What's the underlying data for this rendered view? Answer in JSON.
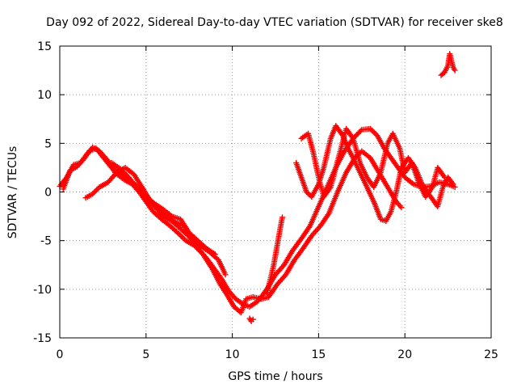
{
  "chart_data": {
    "type": "scatter",
    "title": "Day 092 of 2022, Sidereal Day-to-day VTEC variation (SDTVAR) for receiver ske8",
    "xlabel": "GPS time / hours",
    "ylabel": "SDTVAR / TECUs",
    "xlim": [
      0,
      25
    ],
    "ylim": [
      -15,
      15
    ],
    "xticks": [
      0,
      5,
      10,
      15,
      20,
      25
    ],
    "yticks": [
      -15,
      -10,
      -5,
      0,
      5,
      10,
      15
    ],
    "xtick_labels": [
      "0",
      "5",
      "10",
      "15",
      "20",
      "25"
    ],
    "ytick_labels": [
      "-15",
      "-10",
      "-5",
      "0",
      "5",
      "10",
      "15"
    ],
    "grid": true,
    "marker": "plus",
    "color": "#ff0000",
    "series": [
      {
        "name": "track-1",
        "points": [
          [
            0.0,
            0.6
          ],
          [
            0.4,
            1.5
          ],
          [
            0.8,
            2.8
          ],
          [
            1.2,
            3.0
          ],
          [
            1.7,
            4.2
          ],
          [
            2.1,
            4.5
          ],
          [
            2.5,
            3.6
          ],
          [
            3.0,
            2.5
          ],
          [
            3.5,
            2.0
          ],
          [
            4.0,
            1.2
          ],
          [
            4.5,
            0.6
          ],
          [
            5.0,
            -0.3
          ],
          [
            5.5,
            -1.5
          ],
          [
            6.0,
            -2.5
          ],
          [
            6.5,
            -3.0
          ],
          [
            7.0,
            -3.8
          ],
          [
            7.5,
            -4.6
          ],
          [
            8.0,
            -5.8
          ],
          [
            8.5,
            -6.8
          ],
          [
            9.0,
            -8.0
          ],
          [
            9.4,
            -9.0
          ],
          [
            9.8,
            -10.2
          ],
          [
            10.2,
            -11.0
          ],
          [
            10.6,
            -11.5
          ],
          [
            11.0,
            -11.8
          ],
          [
            11.5,
            -11.2
          ],
          [
            12.0,
            -10.0
          ],
          [
            12.5,
            -8.5
          ],
          [
            13.0,
            -7.5
          ],
          [
            13.5,
            -6.0
          ],
          [
            14.0,
            -4.8
          ],
          [
            14.5,
            -3.5
          ],
          [
            15.0,
            -1.5
          ],
          [
            15.5,
            0.5
          ],
          [
            16.0,
            2.5
          ],
          [
            16.5,
            4.2
          ],
          [
            17.0,
            5.5
          ],
          [
            17.5,
            6.4
          ],
          [
            18.0,
            6.5
          ],
          [
            18.4,
            5.8
          ],
          [
            18.8,
            4.5
          ],
          [
            19.2,
            3.5
          ],
          [
            19.6,
            2.5
          ],
          [
            20.0,
            1.5
          ],
          [
            20.5,
            0.8
          ],
          [
            21.0,
            0.5
          ],
          [
            21.5,
            0.6
          ],
          [
            22.0,
            1.0
          ],
          [
            22.5,
            0.8
          ],
          [
            22.9,
            0.5
          ]
        ]
      },
      {
        "name": "track-2",
        "points": [
          [
            0.2,
            0.3
          ],
          [
            0.6,
            2.2
          ],
          [
            1.0,
            2.6
          ],
          [
            1.4,
            3.4
          ],
          [
            1.9,
            4.6
          ],
          [
            2.3,
            4.2
          ],
          [
            2.8,
            3.2
          ],
          [
            3.2,
            2.0
          ],
          [
            3.7,
            1.3
          ],
          [
            4.2,
            0.8
          ],
          [
            4.6,
            0.0
          ],
          [
            5.0,
            -1.0
          ],
          [
            5.4,
            -2.0
          ],
          [
            5.9,
            -2.8
          ],
          [
            6.4,
            -3.5
          ],
          [
            6.9,
            -4.3
          ],
          [
            7.3,
            -5.0
          ],
          [
            7.8,
            -5.5
          ],
          [
            8.3,
            -6.4
          ],
          [
            8.8,
            -7.8
          ],
          [
            9.3,
            -9.5
          ],
          [
            9.7,
            -10.6
          ],
          [
            10.1,
            -11.8
          ],
          [
            10.5,
            -12.4
          ],
          [
            10.8,
            -11.0
          ],
          [
            11.2,
            -10.8
          ],
          [
            11.7,
            -11.0
          ],
          [
            12.1,
            -10.8
          ],
          [
            12.6,
            -9.5
          ],
          [
            13.1,
            -8.5
          ],
          [
            13.6,
            -7.0
          ],
          [
            14.1,
            -5.8
          ],
          [
            14.6,
            -4.5
          ],
          [
            15.1,
            -3.5
          ],
          [
            15.6,
            -2.2
          ],
          [
            16.1,
            0.0
          ],
          [
            16.6,
            2.0
          ],
          [
            17.1,
            3.5
          ],
          [
            17.5,
            4.2
          ],
          [
            18.0,
            3.5
          ],
          [
            18.5,
            2.0
          ],
          [
            19.0,
            0.5
          ],
          [
            19.5,
            -1.0
          ],
          [
            19.8,
            -1.6
          ]
        ]
      },
      {
        "name": "track-3",
        "points": [
          [
            1.5,
            -0.6
          ],
          [
            1.9,
            -0.2
          ],
          [
            2.3,
            0.5
          ],
          [
            2.8,
            1.0
          ],
          [
            3.3,
            2.0
          ],
          [
            3.8,
            2.5
          ],
          [
            4.3,
            1.8
          ],
          [
            4.8,
            0.4
          ],
          [
            5.2,
            -0.8
          ],
          [
            5.7,
            -1.8
          ],
          [
            6.2,
            -2.6
          ],
          [
            6.7,
            -3.1
          ],
          [
            7.2,
            -3.5
          ],
          [
            7.7,
            -4.8
          ],
          [
            8.2,
            -5.6
          ],
          [
            8.7,
            -6.2
          ],
          [
            9.2,
            -7.0
          ],
          [
            9.6,
            -8.5
          ]
        ]
      },
      {
        "name": "track-4",
        "points": [
          [
            3.0,
            3.0
          ],
          [
            3.5,
            2.4
          ],
          [
            4.0,
            1.5
          ],
          [
            4.5,
            0.4
          ],
          [
            5.0,
            -0.5
          ],
          [
            5.5,
            -1.2
          ],
          [
            6.0,
            -1.8
          ],
          [
            6.5,
            -2.5
          ],
          [
            7.0,
            -2.8
          ],
          [
            7.5,
            -4.2
          ],
          [
            8.0,
            -5.0
          ],
          [
            8.5,
            -5.8
          ],
          [
            9.0,
            -6.4
          ]
        ]
      },
      {
        "name": "track-5",
        "points": [
          [
            13.7,
            3.0
          ],
          [
            14.0,
            1.5
          ],
          [
            14.3,
            0.0
          ],
          [
            14.6,
            -0.5
          ],
          [
            15.0,
            0.8
          ],
          [
            15.3,
            2.5
          ],
          [
            15.7,
            5.5
          ],
          [
            16.0,
            6.8
          ],
          [
            16.4,
            5.8
          ],
          [
            16.7,
            4.5
          ],
          [
            17.0,
            3.5
          ],
          [
            17.4,
            2.0
          ],
          [
            17.8,
            0.5
          ],
          [
            18.2,
            -1.0
          ],
          [
            18.6,
            -2.8
          ],
          [
            18.9,
            -3.0
          ],
          [
            19.2,
            -2.0
          ],
          [
            19.5,
            0.0
          ],
          [
            19.8,
            2.5
          ],
          [
            20.2,
            3.5
          ],
          [
            20.6,
            2.5
          ],
          [
            21.0,
            0.8
          ],
          [
            21.5,
            -0.5
          ],
          [
            21.9,
            -1.5
          ],
          [
            22.2,
            0.5
          ],
          [
            22.5,
            1.5
          ],
          [
            22.8,
            0.8
          ]
        ]
      },
      {
        "name": "track-6",
        "points": [
          [
            14.0,
            5.5
          ],
          [
            14.4,
            6.0
          ],
          [
            14.7,
            4.0
          ],
          [
            15.0,
            1.5
          ],
          [
            15.3,
            -0.5
          ],
          [
            15.7,
            0.5
          ],
          [
            16.0,
            2.5
          ],
          [
            16.3,
            4.5
          ],
          [
            16.6,
            6.5
          ],
          [
            17.0,
            5.5
          ],
          [
            17.4,
            3.0
          ],
          [
            17.8,
            1.5
          ],
          [
            18.2,
            0.5
          ],
          [
            18.6,
            2.0
          ],
          [
            19.0,
            5.0
          ],
          [
            19.3,
            6.0
          ],
          [
            19.7,
            4.5
          ],
          [
            20.0,
            2.0
          ],
          [
            20.4,
            3.0
          ],
          [
            20.8,
            1.0
          ],
          [
            21.2,
            -0.5
          ],
          [
            21.6,
            0.5
          ],
          [
            21.9,
            2.5
          ],
          [
            22.3,
            1.5
          ]
        ]
      },
      {
        "name": "track-7",
        "points": [
          [
            12.0,
            -10.5
          ],
          [
            12.2,
            -9.0
          ],
          [
            12.4,
            -7.5
          ],
          [
            12.6,
            -5.5
          ],
          [
            12.8,
            -3.5
          ],
          [
            12.9,
            -2.6
          ]
        ]
      },
      {
        "name": "track-8",
        "points": [
          [
            11.0,
            -13.0
          ],
          [
            11.1,
            -13.3
          ],
          [
            11.2,
            -13.1
          ]
        ]
      },
      {
        "name": "track-9",
        "points": [
          [
            22.1,
            12.0
          ],
          [
            22.3,
            12.3
          ],
          [
            22.5,
            13.0
          ],
          [
            22.6,
            14.2
          ],
          [
            22.8,
            12.8
          ],
          [
            22.9,
            12.5
          ]
        ]
      }
    ]
  }
}
